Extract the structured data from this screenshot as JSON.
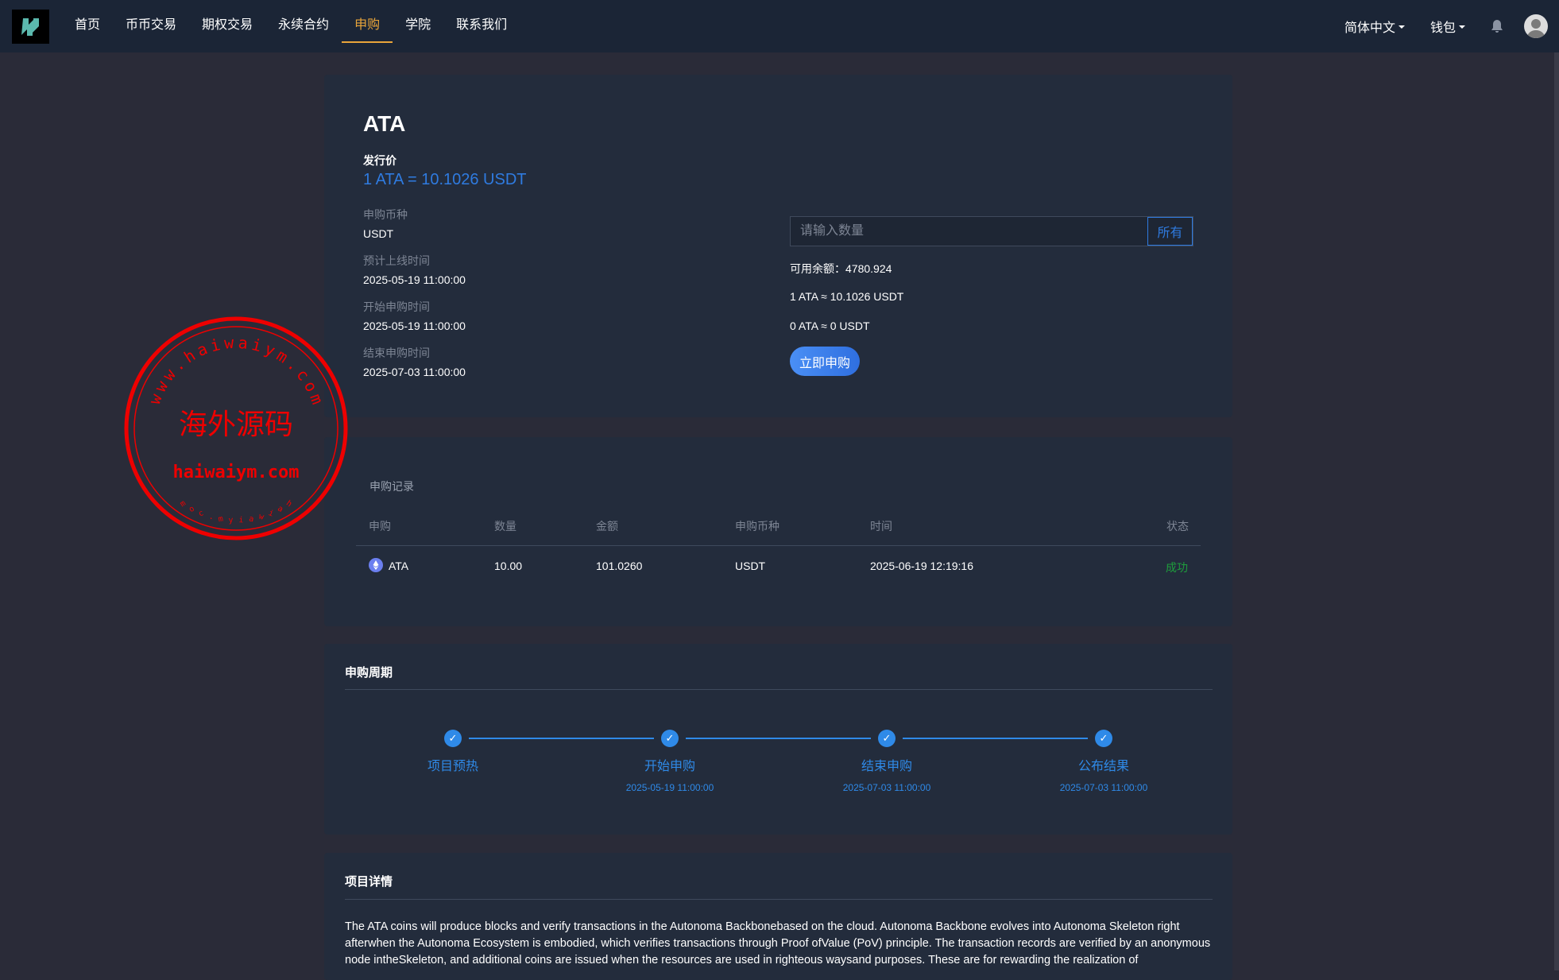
{
  "nav": {
    "items": [
      "首页",
      "币币交易",
      "期权交易",
      "永续合约",
      "申购",
      "学院",
      "联系我们"
    ],
    "active": 4,
    "language": "简体中文",
    "wallet": "钱包"
  },
  "project": {
    "name": "ATA",
    "price_label": "发行价",
    "price": "1 ATA = 10.1026 USDT",
    "fields": [
      {
        "label": "申购币种",
        "value": "USDT"
      },
      {
        "label": "预计上线时间",
        "value": "2025-05-19 11:00:00"
      },
      {
        "label": "开始申购时间",
        "value": "2025-05-19 11:00:00"
      },
      {
        "label": "结束申购时间",
        "value": "2025-07-03 11:00:00"
      }
    ]
  },
  "form": {
    "placeholder": "请输入数量",
    "all_label": "所有",
    "balance": "可用余额：4780.924",
    "rate": "1 ATA ≈ 10.1026 USDT",
    "estimate": "0 ATA ≈ 0 USDT",
    "submit": "立即申购"
  },
  "records": {
    "title": "申购记录",
    "headers": [
      "申购",
      "数量",
      "金额",
      "申购币种",
      "时间",
      "状态"
    ],
    "rows": [
      {
        "coin": "ATA",
        "qty": "10.00",
        "amount": "101.0260",
        "currency": "USDT",
        "time": "2025-06-19 12:19:16",
        "status": "成功"
      }
    ]
  },
  "cycle": {
    "title": "申购周期",
    "steps": [
      {
        "label": "项目预热",
        "date": ""
      },
      {
        "label": "开始申购",
        "date": "2025-05-19 11:00:00"
      },
      {
        "label": "结束申购",
        "date": "2025-07-03 11:00:00"
      },
      {
        "label": "公布结果",
        "date": "2025-07-03 11:00:00"
      }
    ]
  },
  "details": {
    "title": "项目详情",
    "text": "The ATA coins will produce blocks and verify transactions in the Autonoma Backbonebased on the cloud. Autonoma Backbone evolves into Autonoma Skeleton right afterwhen the Autonoma Ecosystem is embodied, which verifies transactions through Proof ofValue (PoV) principle. The transaction records are verified by an anonymous node intheSkeleton, and additional coins are issued when the resources are used in righteous waysand purposes. These are for rewarding the realization of"
  },
  "watermark": {
    "top": "www.haiwaiym.com",
    "center": "海外源码",
    "bottom": "haiwaiym.com",
    "small": "haiwaiym.com"
  },
  "colors": {
    "accent": "#2f7be0",
    "active_nav": "#e9a53a",
    "success": "#1e9e3c"
  }
}
